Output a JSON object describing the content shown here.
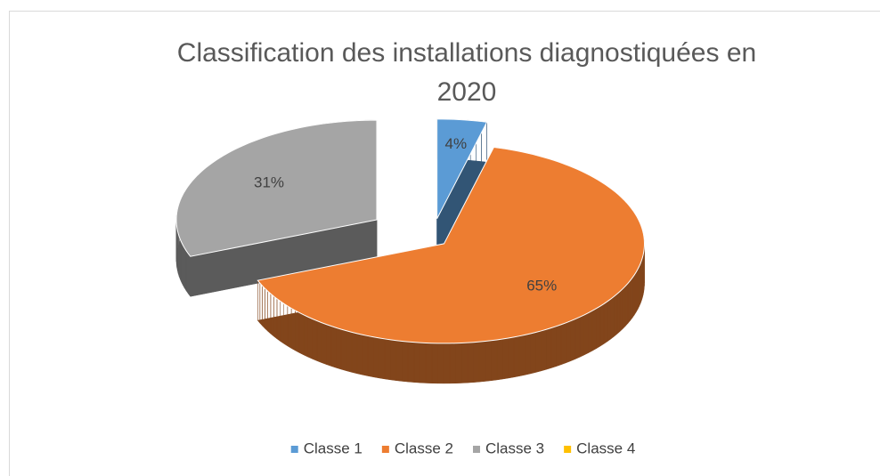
{
  "chart_data": {
    "type": "pie",
    "title": "Classification des installations diagnostiquées en 2020",
    "categories": [
      "Classe 1",
      "Classe 2",
      "Classe 3",
      "Classe 4"
    ],
    "values": [
      4,
      65,
      31,
      0
    ],
    "value_labels": [
      "4%",
      "65%",
      "31%",
      null
    ],
    "colors": [
      "#5b9bd5",
      "#ed7d31",
      "#a5a5a5",
      "#ffc000"
    ],
    "legend": "bottom"
  }
}
